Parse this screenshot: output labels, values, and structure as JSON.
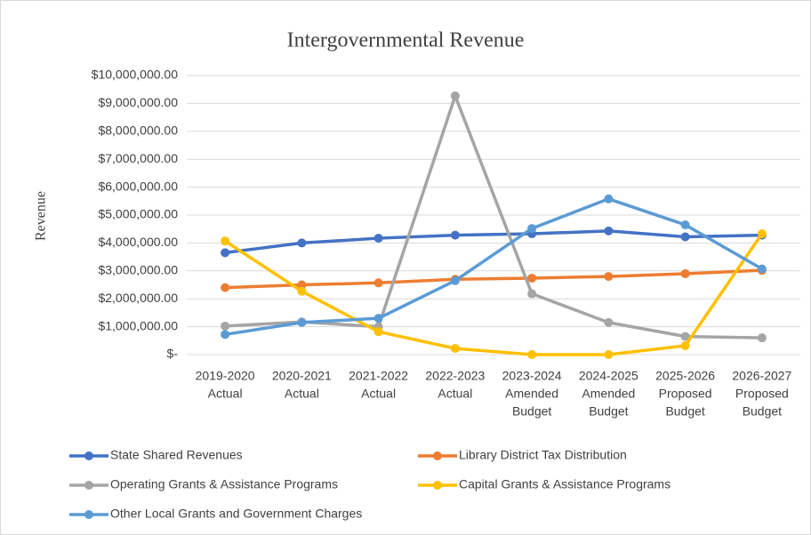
{
  "chart_data": {
    "type": "line",
    "title": "Intergovernmental Revenue",
    "y_label": "Revenue",
    "categories": [
      [
        "2019-2020",
        "Actual"
      ],
      [
        "2020-2021",
        "Actual"
      ],
      [
        "2021-2022",
        "Actual"
      ],
      [
        "2022-2023",
        "Actual"
      ],
      [
        "2023-2024",
        "Amended",
        "Budget"
      ],
      [
        "2024-2025",
        "Amended",
        "Budget"
      ],
      [
        "2025-2026",
        "Proposed",
        "Budget"
      ],
      [
        "2026-2027",
        "Proposed",
        "Budget"
      ]
    ],
    "series": [
      {
        "name": "State Shared Revenues",
        "color": "#4472c4",
        "values": [
          3650000,
          4000000,
          4170000,
          4280000,
          4330000,
          4430000,
          4220000,
          4280000
        ]
      },
      {
        "name": "Library District Tax Distribution",
        "color": "#ed7d31",
        "values": [
          2400000,
          2500000,
          2570000,
          2700000,
          2740000,
          2800000,
          2900000,
          3020000
        ]
      },
      {
        "name": "Operating Grants & Assistance Programs",
        "color": "#a5a5a5",
        "values": [
          1020000,
          1170000,
          1000000,
          9270000,
          2180000,
          1150000,
          650000,
          600000
        ]
      },
      {
        "name": "Capital Grants & Assistance Programs",
        "color": "#ffc000",
        "values": [
          4070000,
          2270000,
          820000,
          220000,
          0,
          0,
          320000,
          4330000
        ]
      },
      {
        "name": "Other Local Grants and Government Charges",
        "color": "#5b9bd5",
        "values": [
          720000,
          1150000,
          1300000,
          2650000,
          4520000,
          5580000,
          4650000,
          3070000
        ]
      }
    ],
    "ylim": [
      0,
      10000000
    ],
    "yticks": [
      {
        "value": 0,
        "label": "$-"
      },
      {
        "value": 1000000,
        "label": "$1,000,000.00"
      },
      {
        "value": 2000000,
        "label": "$2,000,000.00"
      },
      {
        "value": 3000000,
        "label": "$3,000,000.00"
      },
      {
        "value": 4000000,
        "label": "$4,000,000.00"
      },
      {
        "value": 5000000,
        "label": "$5,000,000.00"
      },
      {
        "value": 6000000,
        "label": "$6,000,000.00"
      },
      {
        "value": 7000000,
        "label": "$7,000,000.00"
      },
      {
        "value": 8000000,
        "label": "$8,000,000.00"
      },
      {
        "value": 9000000,
        "label": "$9,000,000.00"
      },
      {
        "value": 10000000,
        "label": "$10,000,000.00"
      }
    ],
    "grid": true,
    "legend": "bottom"
  }
}
